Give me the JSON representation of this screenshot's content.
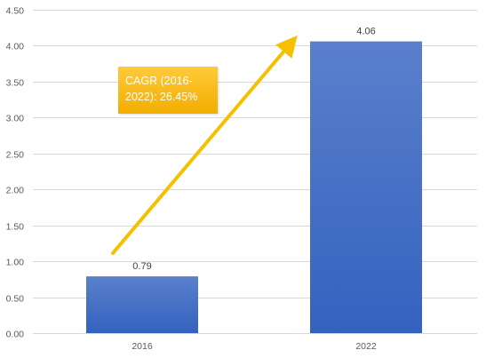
{
  "chart_data": {
    "type": "bar",
    "categories": [
      "2016",
      "2022"
    ],
    "values": [
      0.79,
      4.06
    ],
    "value_labels": [
      "0.79",
      "4.06"
    ],
    "title": "",
    "xlabel": "",
    "ylabel": "",
    "ylim": [
      0,
      4.5
    ],
    "yticks": [
      "0.00",
      "0.50",
      "1.00",
      "1.50",
      "2.00",
      "2.50",
      "3.00",
      "3.50",
      "4.00",
      "4.50"
    ],
    "grid": true,
    "legend": "none",
    "annotation": {
      "text": "CAGR (2016-2022): 26.45%"
    },
    "colors": {
      "bar_top": "#5a80cc",
      "bar_bottom": "#3462bf",
      "arrow": "#f5c000",
      "annotation_bg": "#f5b400"
    }
  }
}
